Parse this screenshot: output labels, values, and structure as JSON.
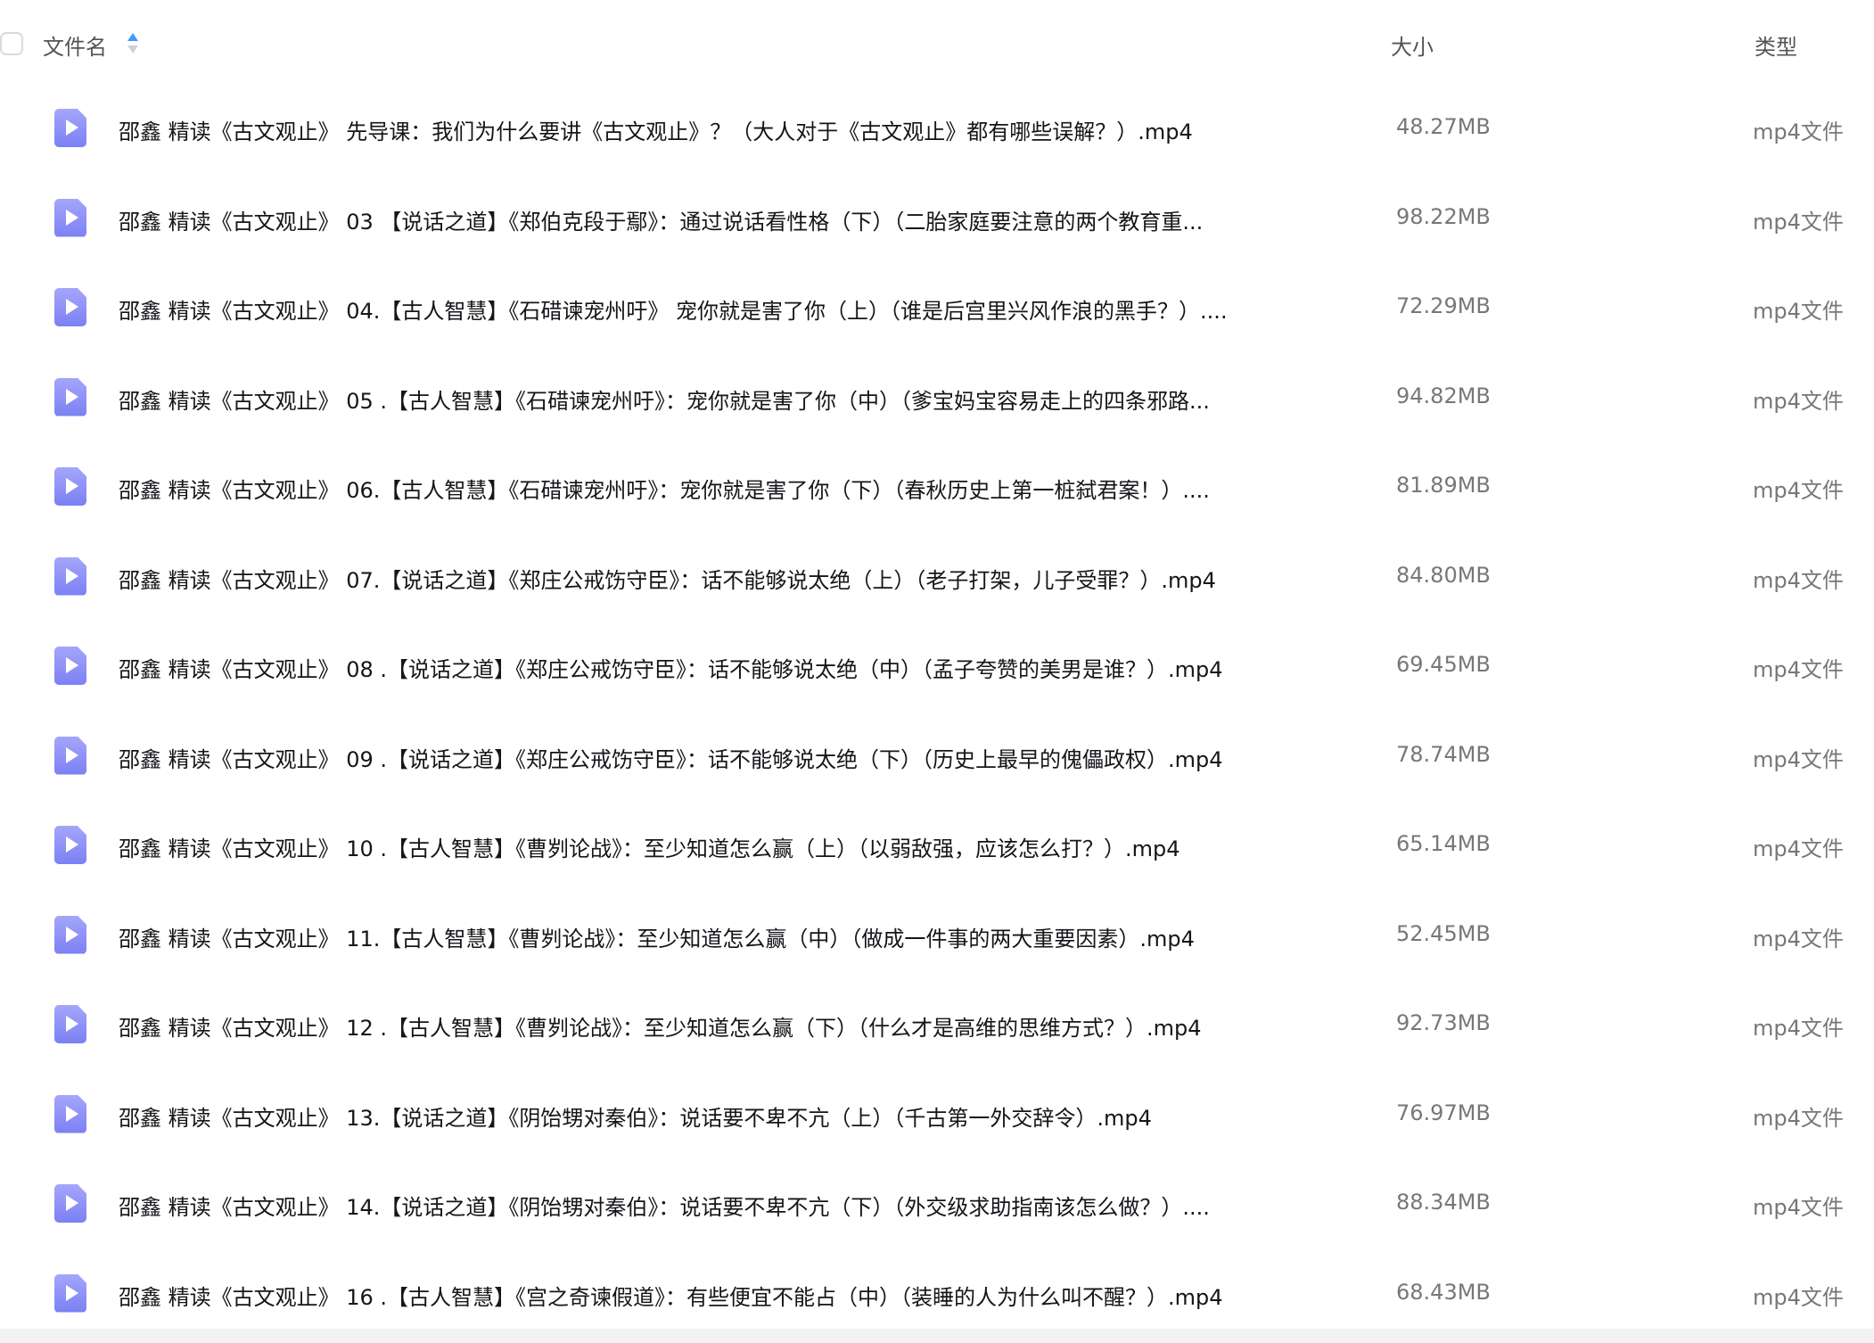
{
  "header": {
    "name": "文件名",
    "size": "大小",
    "type": "类型",
    "sort_active": "ascending",
    "accent": "#3d9bff"
  },
  "files": [
    {
      "name": "邵鑫 精读《古文观止》 先导课：我们为什么要讲《古文观止》？（大人对于《古文观止》都有哪些误解？）.mp4",
      "size": "48.27MB",
      "type": "mp4文件",
      "icon": "video-file-icon"
    },
    {
      "name": "邵鑫 精读《古文观止》 03 【说话之道】《郑伯克段于鄢》：通过说话看性格（下）（二胎家庭要注意的两个教育重...",
      "size": "98.22MB",
      "type": "mp4文件",
      "icon": "video-file-icon"
    },
    {
      "name": "邵鑫 精读《古文观止》 04.【古人智慧】《石碏谏宠州吁》 宠你就是害了你（上）（谁是后宫里兴风作浪的黑手？）....",
      "size": "72.29MB",
      "type": "mp4文件",
      "icon": "video-file-icon"
    },
    {
      "name": "邵鑫 精读《古文观止》 05 .【古人智慧】《石碏谏宠州吁》：宠你就是害了你（中）（爹宝妈宝容易走上的四条邪路...",
      "size": "94.82MB",
      "type": "mp4文件",
      "icon": "video-file-icon"
    },
    {
      "name": "邵鑫 精读《古文观止》 06.【古人智慧】《石碏谏宠州吁》：宠你就是害了你（下）（春秋历史上第一桩弑君案！）....",
      "size": "81.89MB",
      "type": "mp4文件",
      "icon": "video-file-icon"
    },
    {
      "name": "邵鑫 精读《古文观止》 07.【说话之道】《郑庄公戒饬守臣》：话不能够说太绝（上）（老子打架，儿子受罪？）.mp4",
      "size": "84.80MB",
      "type": "mp4文件",
      "icon": "video-file-icon"
    },
    {
      "name": "邵鑫 精读《古文观止》 08 .【说话之道】《郑庄公戒饬守臣》：话不能够说太绝（中）（孟子夸赞的美男是谁？）.mp4",
      "size": "69.45MB",
      "type": "mp4文件",
      "icon": "video-file-icon"
    },
    {
      "name": "邵鑫 精读《古文观止》 09 .【说话之道】《郑庄公戒饬守臣》：话不能够说太绝（下）（历史上最早的傀儡政权）.mp4",
      "size": "78.74MB",
      "type": "mp4文件",
      "icon": "video-file-icon"
    },
    {
      "name": "邵鑫 精读《古文观止》 10 .【古人智慧】《曹刿论战》：至少知道怎么赢（上）（以弱敌强，应该怎么打？）.mp4",
      "size": "65.14MB",
      "type": "mp4文件",
      "icon": "video-file-icon"
    },
    {
      "name": "邵鑫 精读《古文观止》 11.【古人智慧】《曹刿论战》：至少知道怎么赢（中）（做成一件事的两大重要因素）.mp4",
      "size": "52.45MB",
      "type": "mp4文件",
      "icon": "video-file-icon"
    },
    {
      "name": "邵鑫 精读《古文观止》 12 .【古人智慧】《曹刿论战》：至少知道怎么赢（下）（什么才是高维的思维方式？）.mp4",
      "size": "92.73MB",
      "type": "mp4文件",
      "icon": "video-file-icon"
    },
    {
      "name": "邵鑫 精读《古文观止》 13.【说话之道】《阴饴甥对秦伯》：说话要不卑不亢（上）（千古第一外交辞令）.mp4",
      "size": "76.97MB",
      "type": "mp4文件",
      "icon": "video-file-icon"
    },
    {
      "name": "邵鑫 精读《古文观止》 14.【说话之道】《阴饴甥对秦伯》：说话要不卑不亢（下）（外交级求助指南该怎么做？）....",
      "size": "88.34MB",
      "type": "mp4文件",
      "icon": "video-file-icon"
    },
    {
      "name": "邵鑫 精读《古文观止》 16 .【古人智慧】《宫之奇谏假道》：有些便宜不能占（中）（装睡的人为什么叫不醒？）.mp4",
      "size": "68.43MB",
      "type": "mp4文件",
      "icon": "video-file-icon"
    }
  ]
}
